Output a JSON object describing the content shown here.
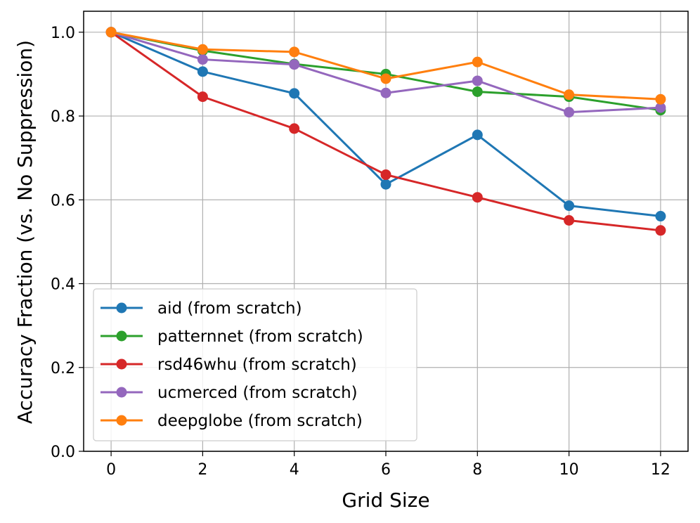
{
  "chart_data": {
    "type": "line",
    "title": "",
    "xlabel": "Grid Size",
    "ylabel": "Accuracy Fraction (vs. No Suppression)",
    "x": [
      0,
      2,
      4,
      6,
      8,
      10,
      12
    ],
    "xlim": [
      -0.6,
      12.6
    ],
    "ylim": [
      0.0,
      1.05
    ],
    "xticks": [
      "0",
      "2",
      "4",
      "6",
      "8",
      "10",
      "12"
    ],
    "yticks": [
      "0.0",
      "0.2",
      "0.4",
      "0.6",
      "0.8",
      "1.0"
    ],
    "grid": true,
    "legend_position": "lower-left",
    "series": [
      {
        "name": "aid (from scratch)",
        "color": "#1f77b4",
        "values": [
          1.0,
          0.906,
          0.854,
          0.637,
          0.755,
          0.586,
          0.561
        ]
      },
      {
        "name": "patternnet (from scratch)",
        "color": "#2ca02c",
        "values": [
          1.0,
          0.956,
          0.924,
          0.9,
          0.858,
          0.846,
          0.814
        ]
      },
      {
        "name": "rsd46whu (from scratch)",
        "color": "#d62728",
        "values": [
          1.0,
          0.846,
          0.77,
          0.66,
          0.606,
          0.551,
          0.527
        ]
      },
      {
        "name": "ucmerced (from scratch)",
        "color": "#9467bd",
        "values": [
          1.0,
          0.935,
          0.923,
          0.855,
          0.884,
          0.809,
          0.82
        ]
      },
      {
        "name": "deepglobe (from scratch)",
        "color": "#ff7f0e",
        "values": [
          1.0,
          0.959,
          0.953,
          0.889,
          0.929,
          0.851,
          0.84
        ]
      }
    ]
  }
}
